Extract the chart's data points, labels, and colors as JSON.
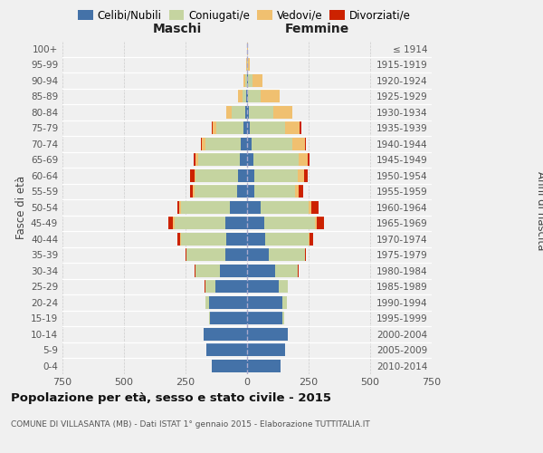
{
  "age_groups": [
    "0-4",
    "5-9",
    "10-14",
    "15-19",
    "20-24",
    "25-29",
    "30-34",
    "35-39",
    "40-44",
    "45-49",
    "50-54",
    "55-59",
    "60-64",
    "65-69",
    "70-74",
    "75-79",
    "80-84",
    "85-89",
    "90-94",
    "95-99",
    "100+"
  ],
  "birth_years": [
    "2010-2014",
    "2005-2009",
    "2000-2004",
    "1995-1999",
    "1990-1994",
    "1985-1989",
    "1980-1984",
    "1975-1979",
    "1970-1974",
    "1965-1969",
    "1960-1964",
    "1955-1959",
    "1950-1954",
    "1945-1949",
    "1940-1944",
    "1935-1939",
    "1930-1934",
    "1925-1929",
    "1920-1924",
    "1915-1919",
    "≤ 1914"
  ],
  "colors": {
    "celibi": "#4472a8",
    "coniugati": "#c5d4a0",
    "vedovi": "#f0c070",
    "divorziati": "#cc2200"
  },
  "males": {
    "celibi": [
      145,
      165,
      175,
      150,
      155,
      130,
      110,
      90,
      85,
      90,
      70,
      40,
      35,
      30,
      25,
      15,
      8,
      3,
      1,
      0,
      0
    ],
    "coniugati": [
      0,
      0,
      2,
      5,
      15,
      40,
      100,
      155,
      185,
      205,
      200,
      175,
      175,
      170,
      145,
      110,
      55,
      15,
      5,
      1,
      0
    ],
    "vedovi": [
      0,
      0,
      0,
      0,
      0,
      0,
      0,
      0,
      2,
      5,
      5,
      5,
      5,
      10,
      15,
      15,
      20,
      20,
      10,
      1,
      0
    ],
    "divorziati": [
      0,
      0,
      0,
      0,
      0,
      2,
      5,
      5,
      10,
      20,
      8,
      12,
      18,
      8,
      3,
      2,
      1,
      0,
      0,
      0,
      0
    ]
  },
  "females": {
    "celibi": [
      135,
      155,
      165,
      145,
      145,
      130,
      115,
      90,
      75,
      70,
      55,
      30,
      30,
      25,
      20,
      10,
      8,
      4,
      2,
      0,
      0
    ],
    "coniugati": [
      0,
      0,
      2,
      5,
      15,
      35,
      90,
      145,
      175,
      205,
      195,
      165,
      175,
      185,
      165,
      145,
      100,
      50,
      20,
      2,
      0
    ],
    "vedovi": [
      0,
      0,
      0,
      0,
      0,
      0,
      0,
      2,
      5,
      8,
      12,
      15,
      25,
      35,
      50,
      60,
      75,
      80,
      40,
      8,
      2
    ],
    "divorziati": [
      0,
      0,
      0,
      0,
      0,
      1,
      3,
      3,
      15,
      30,
      30,
      18,
      18,
      8,
      5,
      4,
      2,
      0,
      0,
      0,
      0
    ]
  },
  "xlim": 750,
  "title": "Popolazione per età, sesso e stato civile - 2015",
  "subtitle": "COMUNE DI VILLASANTA (MB) - Dati ISTAT 1° gennaio 2015 - Elaborazione TUTTITALIA.IT",
  "xlabel_left": "Maschi",
  "xlabel_right": "Femmine",
  "ylabel_left": "Fasce di età",
  "ylabel_right": "Anni di nascita",
  "legend_labels": [
    "Celibi/Nubili",
    "Coniugati/e",
    "Vedovi/e",
    "Divorziati/e"
  ],
  "background_color": "#f0f0f0"
}
